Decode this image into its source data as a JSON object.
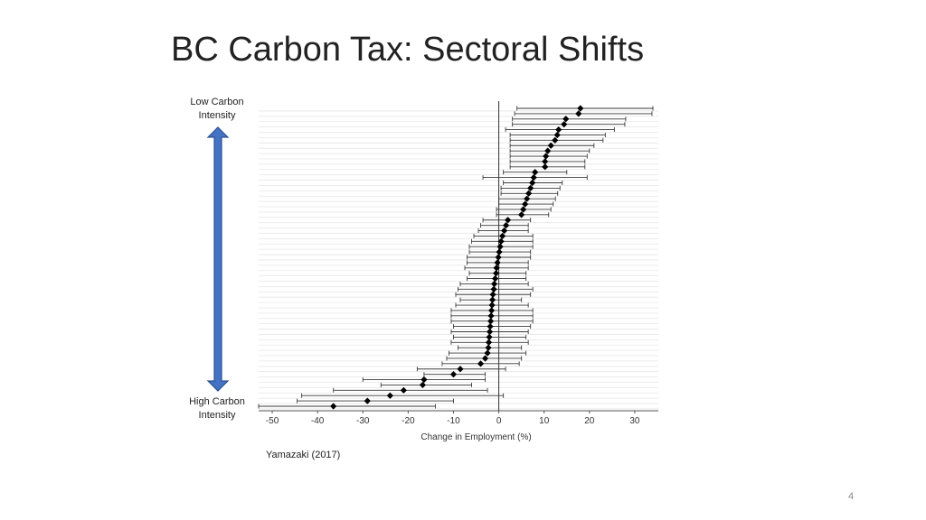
{
  "slide": {
    "title": "BC Carbon Tax: Sectoral Shifts",
    "page_number": "4",
    "citation": "Yamazaki (2017)"
  },
  "direction_arrow": {
    "top_label": [
      "Low Carbon",
      "Intensity"
    ],
    "bottom_label": [
      "High Carbon",
      "Intensity"
    ],
    "color": "#4472C4",
    "border_color": "#2F528F",
    "icon": "double-arrow-vertical-icon"
  },
  "chart_data": {
    "type": "forest",
    "title": "",
    "xlabel": "Change in Employment (%)",
    "ylabel": "",
    "xlim": [
      -53,
      36
    ],
    "xticks": [
      -50,
      -40,
      -30,
      -20,
      -10,
      0,
      10,
      20,
      30
    ],
    "xtick_labels": [
      "-50",
      "-40",
      "-30",
      "-20",
      "-10",
      "0",
      "10",
      "20",
      "30"
    ],
    "reference_line": 0,
    "marker": "diamond",
    "marker_color": "#000000",
    "order": "top = lowest carbon intensity, bottom = highest carbon intensity",
    "sectors": [
      {
        "estimate": 18.0,
        "ci": [
          4.0,
          34.0
        ]
      },
      {
        "estimate": 17.6,
        "ci": [
          3.5,
          33.8
        ]
      },
      {
        "estimate": 14.8,
        "ci": [
          3.0,
          28.0
        ]
      },
      {
        "estimate": 14.4,
        "ci": [
          3.0,
          27.8
        ]
      },
      {
        "estimate": 13.2,
        "ci": [
          1.5,
          25.5
        ]
      },
      {
        "estimate": 12.9,
        "ci": [
          2.5,
          23.5
        ]
      },
      {
        "estimate": 12.4,
        "ci": [
          2.5,
          23.0
        ]
      },
      {
        "estimate": 11.5,
        "ci": [
          2.5,
          21.0
        ]
      },
      {
        "estimate": 10.8,
        "ci": [
          2.5,
          20.0
        ]
      },
      {
        "estimate": 10.4,
        "ci": [
          2.5,
          19.5
        ]
      },
      {
        "estimate": 10.2,
        "ci": [
          2.5,
          19.0
        ]
      },
      {
        "estimate": 10.2,
        "ci": [
          2.5,
          19.0
        ]
      },
      {
        "estimate": 8.0,
        "ci": [
          1.0,
          15.0
        ]
      },
      {
        "estimate": 7.7,
        "ci": [
          -3.5,
          19.5
        ]
      },
      {
        "estimate": 7.4,
        "ci": [
          1.0,
          14.0
        ]
      },
      {
        "estimate": 7.0,
        "ci": [
          0.5,
          13.5
        ]
      },
      {
        "estimate": 6.6,
        "ci": [
          0.5,
          13.0
        ]
      },
      {
        "estimate": 6.2,
        "ci": [
          0.0,
          12.5
        ]
      },
      {
        "estimate": 5.8,
        "ci": [
          0.0,
          12.0
        ]
      },
      {
        "estimate": 5.4,
        "ci": [
          -0.5,
          11.5
        ]
      },
      {
        "estimate": 5.0,
        "ci": [
          -0.5,
          11.0
        ]
      },
      {
        "estimate": 2.0,
        "ci": [
          -3.5,
          7.0
        ]
      },
      {
        "estimate": 1.6,
        "ci": [
          -4.0,
          6.5
        ]
      },
      {
        "estimate": 1.2,
        "ci": [
          -4.5,
          6.5
        ]
      },
      {
        "estimate": 0.8,
        "ci": [
          -5.5,
          7.5
        ]
      },
      {
        "estimate": 0.5,
        "ci": [
          -6.0,
          7.5
        ]
      },
      {
        "estimate": 0.3,
        "ci": [
          -6.5,
          7.5
        ]
      },
      {
        "estimate": 0.1,
        "ci": [
          -6.5,
          7.0
        ]
      },
      {
        "estimate": -0.1,
        "ci": [
          -7.0,
          7.0
        ]
      },
      {
        "estimate": -0.3,
        "ci": [
          -7.0,
          6.5
        ]
      },
      {
        "estimate": -0.5,
        "ci": [
          -7.5,
          6.5
        ]
      },
      {
        "estimate": -0.6,
        "ci": [
          -6.5,
          6.0
        ]
      },
      {
        "estimate": -0.8,
        "ci": [
          -7.0,
          6.0
        ]
      },
      {
        "estimate": -1.0,
        "ci": [
          -8.5,
          6.5
        ]
      },
      {
        "estimate": -1.1,
        "ci": [
          -9.0,
          7.5
        ]
      },
      {
        "estimate": -1.3,
        "ci": [
          -9.5,
          7.0
        ]
      },
      {
        "estimate": -1.4,
        "ci": [
          -8.5,
          5.0
        ]
      },
      {
        "estimate": -1.5,
        "ci": [
          -9.5,
          6.5
        ]
      },
      {
        "estimate": -1.6,
        "ci": [
          -10.5,
          7.5
        ]
      },
      {
        "estimate": -1.7,
        "ci": [
          -10.5,
          7.5
        ]
      },
      {
        "estimate": -1.8,
        "ci": [
          -10.5,
          7.5
        ]
      },
      {
        "estimate": -1.9,
        "ci": [
          -10.0,
          7.0
        ]
      },
      {
        "estimate": -2.0,
        "ci": [
          -10.5,
          6.5
        ]
      },
      {
        "estimate": -2.1,
        "ci": [
          -10.0,
          6.0
        ]
      },
      {
        "estimate": -2.2,
        "ci": [
          -10.5,
          6.5
        ]
      },
      {
        "estimate": -2.3,
        "ci": [
          -9.0,
          5.0
        ]
      },
      {
        "estimate": -2.5,
        "ci": [
          -11.0,
          6.0
        ]
      },
      {
        "estimate": -3.0,
        "ci": [
          -11.5,
          5.0
        ]
      },
      {
        "estimate": -4.0,
        "ci": [
          -12.5,
          4.5
        ]
      },
      {
        "estimate": -8.5,
        "ci": [
          -18.0,
          1.5
        ]
      },
      {
        "estimate": -10.0,
        "ci": [
          -16.5,
          -3.0
        ]
      },
      {
        "estimate": -16.5,
        "ci": [
          -30.0,
          -3.0
        ]
      },
      {
        "estimate": -16.8,
        "ci": [
          -26.0,
          -6.0
        ]
      },
      {
        "estimate": -21.0,
        "ci": [
          -36.5,
          -2.5
        ]
      },
      {
        "estimate": -24.0,
        "ci": [
          -43.5,
          1.0
        ]
      },
      {
        "estimate": -29.0,
        "ci": [
          -44.5,
          -10.0
        ]
      },
      {
        "estimate": -36.5,
        "ci": [
          -53.0,
          -14.0
        ]
      }
    ]
  }
}
